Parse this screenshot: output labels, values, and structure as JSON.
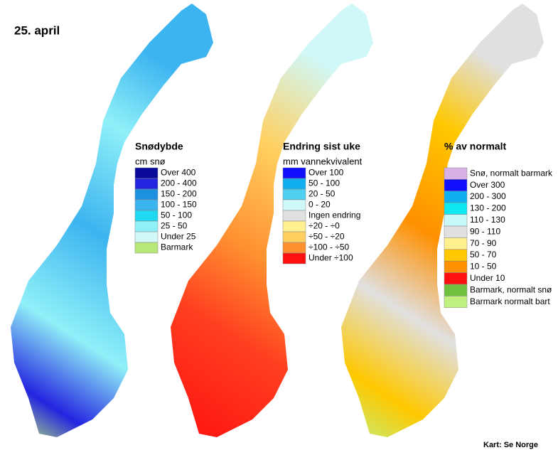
{
  "date": "25. april",
  "maps": [
    {
      "title": "Snødybde",
      "subtitle": "cm snø",
      "legend": [
        {
          "label": "Over 400",
          "color": "#0a0a9a"
        },
        {
          "label": "200 - 400",
          "color": "#2424e0"
        },
        {
          "label": "150 - 200",
          "color": "#1e90e0"
        },
        {
          "label": "100 - 150",
          "color": "#3cb4f0"
        },
        {
          "label": "50 - 100",
          "color": "#20d8f0"
        },
        {
          "label": "25 - 50",
          "color": "#90f0f8"
        },
        {
          "label": "Under 25",
          "color": "#d0f8f8"
        },
        {
          "label": "Barmark",
          "color": "#b8e878"
        }
      ]
    },
    {
      "title": "Endring sist uke",
      "subtitle": "mm vannekvivalent",
      "legend": [
        {
          "label": "Over 100",
          "color": "#1010ff"
        },
        {
          "label": "50 - 100",
          "color": "#10b0f0"
        },
        {
          "label": "20 - 50",
          "color": "#50d0f0"
        },
        {
          "label": "0 - 20",
          "color": "#d0f8f8"
        },
        {
          "label": "Ingen endring",
          "color": "#e0e0e0"
        },
        {
          "label": "÷20 - ÷0",
          "color": "#fff090"
        },
        {
          "label": "÷50 - ÷20",
          "color": "#ffd060"
        },
        {
          "label": "÷100 - ÷50",
          "color": "#ff9030"
        },
        {
          "label": "Under ÷100",
          "color": "#ff1010"
        }
      ]
    },
    {
      "title": "% av normalt",
      "legend": [
        {
          "label": "Snø, normalt barmark",
          "color": "#d8b0e8"
        },
        {
          "label": "Over 300",
          "color": "#1010ff"
        },
        {
          "label": "200 - 300",
          "color": "#10b0f0"
        },
        {
          "label": "130 - 200",
          "color": "#10e8f0"
        },
        {
          "label": "110 - 130",
          "color": "#c8f8f8"
        },
        {
          "label": "90 - 110",
          "color": "#e0e0e0"
        },
        {
          "label": "70 - 90",
          "color": "#fff090"
        },
        {
          "label": "50 - 70",
          "color": "#ffc800"
        },
        {
          "label": "10 - 50",
          "color": "#ff9000"
        },
        {
          "label": "Under 10",
          "color": "#ff1010"
        },
        {
          "label": "Barmark, normalt snø",
          "color": "#70c040"
        },
        {
          "label": "Barmark normalt bart",
          "color": "#c0f080"
        }
      ]
    }
  ],
  "credit": "Kart: Se Norge"
}
